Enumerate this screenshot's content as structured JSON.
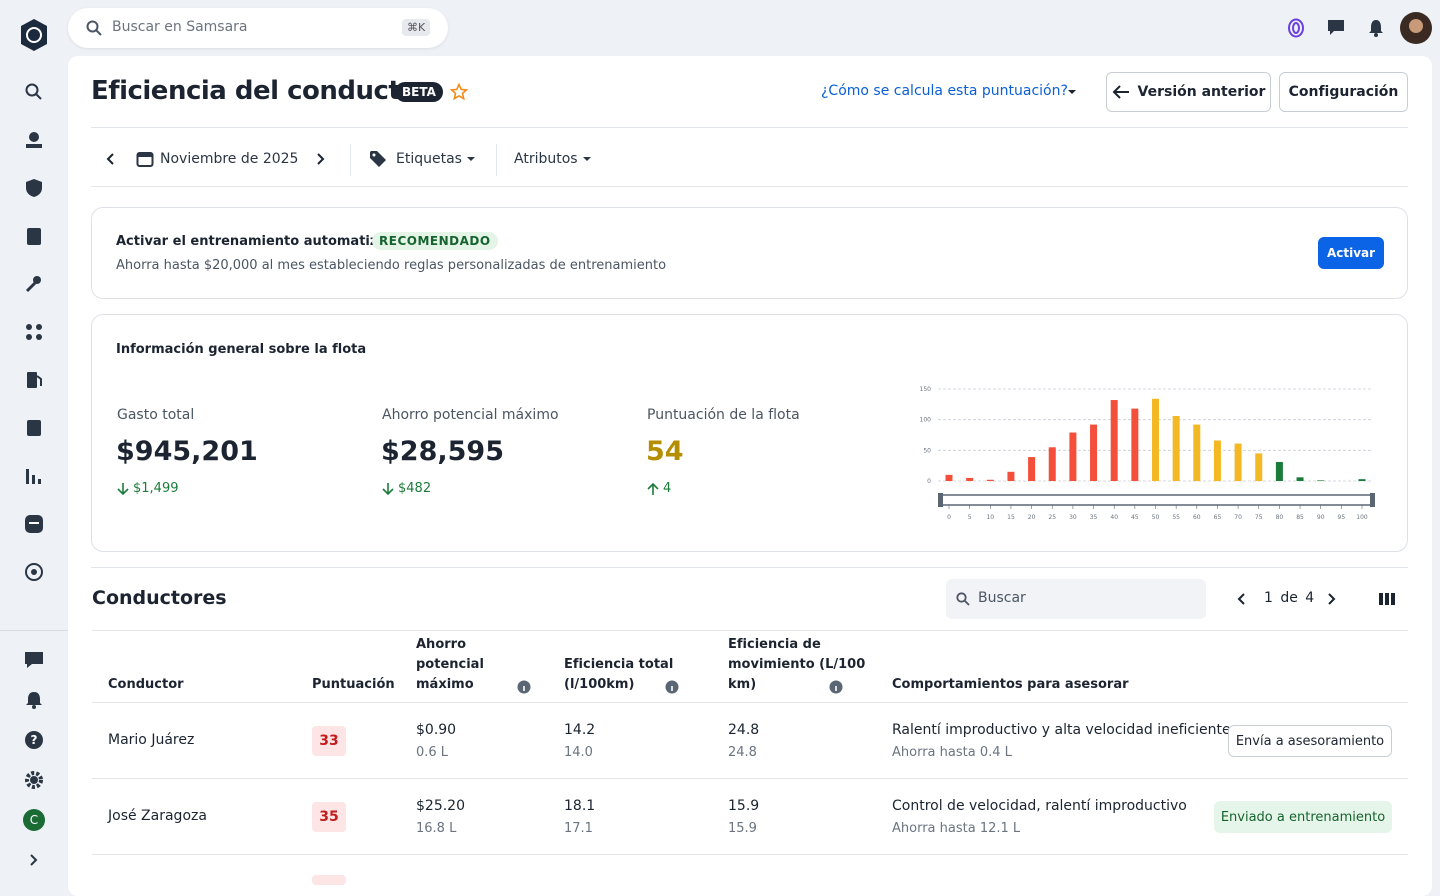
{
  "topbar": {
    "search_placeholder": "Buscar en Samsara",
    "shortcut": "⌘K"
  },
  "sidebar": {
    "avatar": "C"
  },
  "header": {
    "title": "Eficiencia del conductor",
    "badge": "BETA",
    "help_link": "¿Cómo se calcula esta puntuación?",
    "buttons": [
      "Versión anterior",
      "Configuración"
    ]
  },
  "filters": {
    "period": "Noviembre de 2025",
    "tags": "Etiquetas",
    "attributes": "Atributos"
  },
  "banner": {
    "title": "Activar el entrenamiento automatizado",
    "badge": "RECOMENDADO",
    "text": "Ahorra hasta $20,000 al mes estableciendo reglas personalizadas de entrenamiento",
    "button": "Activar"
  },
  "fleet": {
    "title": "Información general sobre la flota",
    "metrics": [
      {
        "label": "Gasto total",
        "value": "$945,201",
        "delta": "$1,499"
      },
      {
        "label": "Ahorro potencial máximo",
        "value": "$28,595",
        "delta": "$482"
      },
      {
        "label": "Puntuación de la flota",
        "value": "54",
        "delta": "4"
      }
    ]
  },
  "chart_data": {
    "type": "bar",
    "x": [
      0,
      5,
      10,
      15,
      20,
      25,
      30,
      35,
      40,
      45,
      50,
      55,
      60,
      65,
      70,
      75,
      80,
      85,
      90,
      95,
      100
    ],
    "values": [
      10,
      5,
      2,
      15,
      39,
      55,
      79,
      92,
      132,
      118,
      134,
      106,
      92,
      66,
      61,
      45,
      31,
      6,
      1,
      0,
      3
    ],
    "colors": [
      "#f44f3b",
      "#f44f3b",
      "#f44f3b",
      "#f44f3b",
      "#f44f3b",
      "#f44f3b",
      "#f44f3b",
      "#f44f3b",
      "#f44f3b",
      "#f44f3b",
      "#f3b823",
      "#f3b823",
      "#f3b823",
      "#f3b823",
      "#f3b823",
      "#f3b823",
      "#1b7c3a",
      "#1b7c3a",
      "#1b7c3a",
      "#1b7c3a",
      "#1b7c3a"
    ],
    "xlim": [
      0,
      100
    ],
    "xticks": [
      0,
      5,
      10,
      15,
      20,
      25,
      30,
      35,
      40,
      45,
      50,
      55,
      60,
      65,
      70,
      75,
      80,
      85,
      90,
      95,
      100
    ],
    "ylim": [
      0,
      150
    ],
    "yticks": [
      0,
      50,
      100,
      150
    ],
    "grid": true
  },
  "drivers": {
    "title": "Conductores",
    "search_placeholder": "Buscar",
    "pagination": "1 de 4",
    "columns": [
      "Conductor",
      "Puntuación",
      "Ahorro potencial máximo",
      "Eficiencia total (l/100km)",
      "Eficiencia de movimiento (L/100 km)",
      "Comportamientos para asesorar"
    ],
    "rows": [
      {
        "name": "Mario Juárez",
        "score": "33",
        "savings": "$0.90",
        "savings_l": "0.6 L",
        "total": "14.2",
        "total_sub": "14.0",
        "movement": "24.8",
        "movement_sub": "24.8",
        "behaviors": "Ralentí improductivo y alta velocidad ineficiente",
        "behaviors_sub": "Ahorra hasta 0.4 L",
        "action": "Envía a asesoramiento"
      },
      {
        "name": "José Zaragoza",
        "score": "35",
        "savings": "$25.20",
        "savings_l": "16.8 L",
        "total": "18.1",
        "total_sub": "17.1",
        "movement": "15.9",
        "movement_sub": "15.9",
        "behaviors": "Control de velocidad, ralentí improductivo",
        "behaviors_sub": "Ahorra hasta 12.1 L",
        "action": "Enviado a entrenamiento"
      }
    ]
  }
}
